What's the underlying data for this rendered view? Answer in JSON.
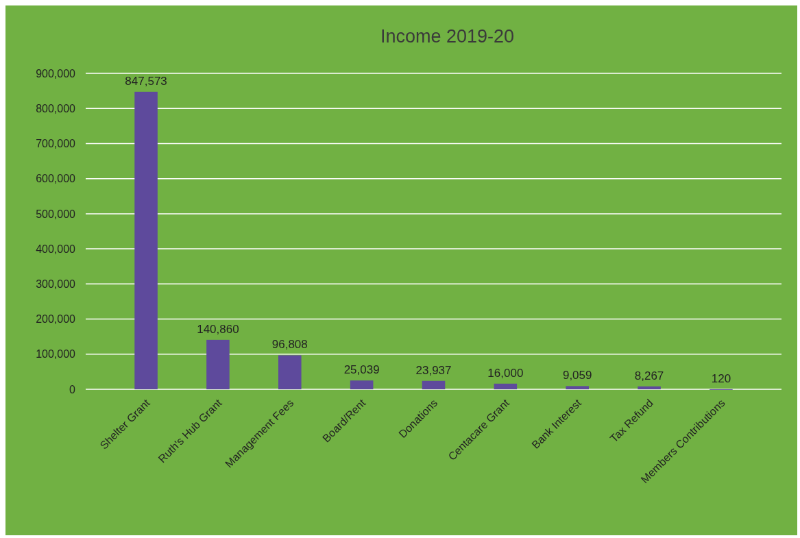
{
  "chart_data": {
    "type": "bar",
    "title": "Income 2019-20",
    "categories": [
      "Shelter Grant",
      "Ruth's Hub Grant",
      "Management Fees",
      "Board/Rent",
      "Donations",
      "Centacare Grant",
      "Bank Interest",
      "Tax Refund",
      "Members Contributions"
    ],
    "values": [
      847573,
      140860,
      96808,
      25039,
      23937,
      16000,
      9059,
      8267,
      120
    ],
    "value_labels": [
      "847,573",
      "140,860",
      "96,808",
      "25,039",
      "23,937",
      "16,000",
      "9,059",
      "8,267",
      "120"
    ],
    "color": "#5e4a9c",
    "ylim": [
      0,
      900000
    ],
    "yticks": [
      {
        "value": 0,
        "label": "0"
      },
      {
        "value": 100000,
        "label": "100,000"
      },
      {
        "value": 200000,
        "label": "200,000"
      },
      {
        "value": 300000,
        "label": "300,000"
      },
      {
        "value": 400000,
        "label": "400,000"
      },
      {
        "value": 500000,
        "label": "500,000"
      },
      {
        "value": 600000,
        "label": "600,000"
      },
      {
        "value": 700000,
        "label": "700,000"
      },
      {
        "value": 800000,
        "label": "800,000"
      },
      {
        "value": 900000,
        "label": "900,000"
      }
    ],
    "grid": "y"
  }
}
